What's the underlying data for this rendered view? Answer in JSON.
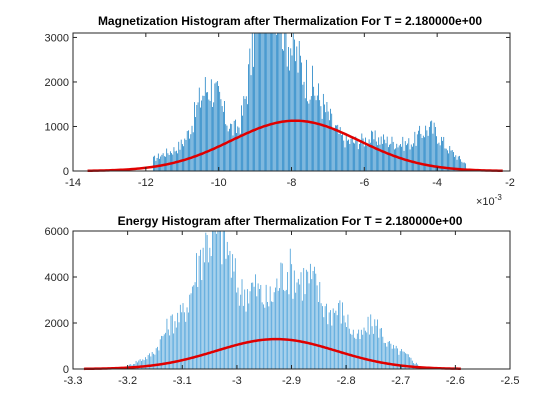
{
  "chart_data": [
    {
      "type": "bar",
      "subtype": "histogram-with-fit",
      "title": "Magnetization Histogram after Thermalization For T = 2.180000e+00",
      "xlabel": "",
      "ylabel": "",
      "x_exponent_label": "×10",
      "x_exponent_power": "-3",
      "xlim": [
        -14,
        -2
      ],
      "ylim": [
        0,
        3100
      ],
      "xticks": [
        "-14",
        "-12",
        "-10",
        "-8",
        "-6",
        "-4",
        "-2"
      ],
      "yticks": [
        "0",
        "1000",
        "2000",
        "3000"
      ],
      "bar_color": "#0072BD",
      "fit_color": "#E00000",
      "histogram_peaks": [
        {
          "x": -11.7,
          "y": 0,
          "w": 0.2
        },
        {
          "x": -11.2,
          "y": 450,
          "w": 0.6
        },
        {
          "x": -10.3,
          "y": 1450,
          "w": 0.35
        },
        {
          "x": -9.75,
          "y": 700,
          "w": 0.5
        },
        {
          "x": -9.0,
          "y": 1900,
          "w": 0.25
        },
        {
          "x": -8.65,
          "y": 2900,
          "w": 0.25
        },
        {
          "x": -8.3,
          "y": 2100,
          "w": 0.3
        },
        {
          "x": -7.8,
          "y": 1800,
          "w": 0.35
        },
        {
          "x": -7.2,
          "y": 1100,
          "w": 0.35
        },
        {
          "x": -6.5,
          "y": 500,
          "w": 0.45
        },
        {
          "x": -5.7,
          "y": 600,
          "w": 0.4
        },
        {
          "x": -5.0,
          "y": 450,
          "w": 0.35
        },
        {
          "x": -4.2,
          "y": 950,
          "w": 0.35
        },
        {
          "x": -3.5,
          "y": 250,
          "w": 0.3
        }
      ],
      "histogram_range": [
        -11.8,
        -3.2
      ],
      "fit": {
        "mean": -7.9,
        "sigma": 1.75,
        "amplitude": 1130,
        "range": [
          -13.6,
          -2.2
        ]
      }
    },
    {
      "type": "bar",
      "subtype": "histogram-with-fit",
      "title": "Energy Histogram after Thermalization For T = 2.180000e+00",
      "xlabel": "",
      "ylabel": "",
      "xlim": [
        -3.3,
        -2.5
      ],
      "ylim": [
        0,
        6000
      ],
      "xticks": [
        "-3.3",
        "-3.2",
        "-3.1",
        "-3",
        "-2.9",
        "-2.8",
        "-2.7",
        "-2.6",
        "-2.5"
      ],
      "yticks": [
        "0",
        "2000",
        "4000",
        "6000"
      ],
      "bar_color": "#4FA3DA",
      "fit_color": "#E00000",
      "histogram_peaks": [
        {
          "x": -3.17,
          "y": 400,
          "w": 0.02
        },
        {
          "x": -3.12,
          "y": 1800,
          "w": 0.02
        },
        {
          "x": -3.06,
          "y": 5000,
          "w": 0.025
        },
        {
          "x": -3.02,
          "y": 4200,
          "w": 0.02
        },
        {
          "x": -2.97,
          "y": 3300,
          "w": 0.02
        },
        {
          "x": -2.91,
          "y": 4300,
          "w": 0.025
        },
        {
          "x": -2.86,
          "y": 3300,
          "w": 0.02
        },
        {
          "x": -2.81,
          "y": 2500,
          "w": 0.02
        },
        {
          "x": -2.75,
          "y": 2000,
          "w": 0.02
        },
        {
          "x": -2.7,
          "y": 700,
          "w": 0.02
        }
      ],
      "histogram_range": [
        -3.2,
        -2.66
      ],
      "fit": {
        "mean": -2.928,
        "sigma": 0.11,
        "amplitude": 1300,
        "range": [
          -3.28,
          -2.59
        ]
      }
    }
  ]
}
